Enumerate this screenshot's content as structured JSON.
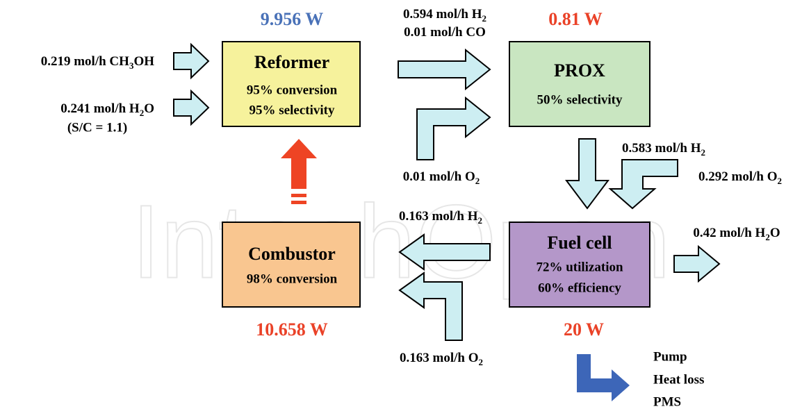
{
  "watermark": "IntechOpen",
  "reformer": {
    "power": "9.956 W",
    "title": "Reformer",
    "lines": [
      "95% conversion",
      "95% selectivity"
    ]
  },
  "prox": {
    "power": "0.81 W",
    "title": "PROX",
    "lines": [
      "50% selectivity"
    ]
  },
  "combustor": {
    "power": "10.658 W",
    "title": "Combustor",
    "lines": [
      "98% conversion"
    ]
  },
  "fuel_cell": {
    "power": "20 W",
    "title": "Fuel cell",
    "lines": [
      "72% utilization",
      "60% efficiency"
    ]
  },
  "flows": [
    [
      "0.219 mol/h CH",
      "3",
      "OH"
    ],
    [
      "0.241 mol/h H",
      "2",
      "O"
    ],
    [
      "0.594 mol/h H",
      "2"
    ],
    [
      "0.01 mol/h CO"
    ],
    [
      "0.01 mol/h O",
      "2"
    ],
    [
      "0.583 mol/h H",
      "2"
    ],
    [
      "0.292 mol/h O",
      "2"
    ],
    [
      "0.42 mol/h H",
      "2",
      "O"
    ],
    [
      "0.163 mol/h H",
      "2"
    ],
    [
      "0.163 mol/h O",
      "2"
    ]
  ],
  "note": "(S/C = 1.1)",
  "outputs": [
    "Pump",
    "Heat loss",
    "PMS"
  ]
}
